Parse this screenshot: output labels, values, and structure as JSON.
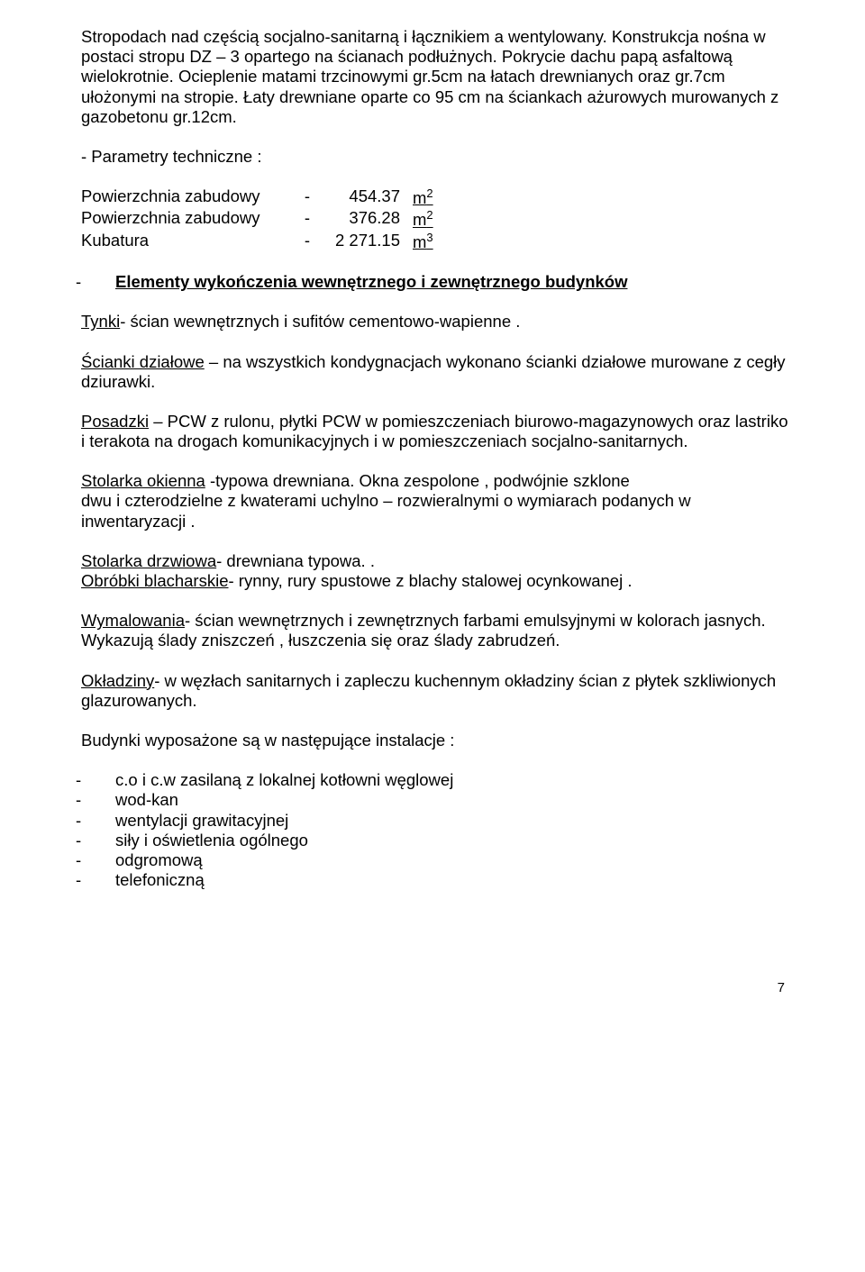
{
  "p1": "Stropodach nad częścią socjalno-sanitarną i łącznikiem a wentylowany.  Konstrukcja nośna w postaci stropu DZ – 3 opartego na ścianach podłużnych. Pokrycie dachu papą asfaltową wielokrotnie. Ocieplenie matami trzcinowymi gr.5cm na łatach drewnianych oraz gr.7cm ułożonymi na stropie. Łaty drewniane oparte co 95 cm na ściankach ażurowych murowanych z gazobetonu gr.12cm.",
  "param_heading": "- Parametry techniczne :",
  "params": {
    "r0": {
      "name": "Powierzchnia zabudowy",
      "dash": "-",
      "value": "454.37",
      "unit_base": "m",
      "unit_exp": "2"
    },
    "r1": {
      "name": "Powierzchnia zabudowy",
      "dash": "-",
      "value": "376.28",
      "unit_base": "m",
      "unit_exp": "2"
    },
    "r2": {
      "name": "Kubatura",
      "dash": "-",
      "value": "2 271.15",
      "unit_base": "m",
      "unit_exp": "3"
    }
  },
  "section_dash": "-",
  "section_title": "Elementy wykończenia wewnętrznego i zewnętrznego budynków",
  "tynki_u": "Tynki",
  "tynki_rest": "- ścian wewnętrznych i sufitów cementowo-wapienne .",
  "scianki_u": "Ścianki działowe",
  "scianki_rest": " – na wszystkich kondygnacjach wykonano  ścianki działowe murowane z cegły dziurawki.",
  "posadzki_u": "Posadzki",
  "posadzki_rest": " – PCW z rulonu, płytki PCW  w pomieszczeniach biurowo-magazynowych oraz lastriko i terakota  na drogach komunikacyjnych i w pomieszczeniach socjalno-sanitarnych.",
  "okienna_u": "Stolarka okienna",
  "okienna_rest1": " -typowa drewniana. Okna zespolone , podwójnie szklone",
  "okienna_rest2": "dwu i czterodzielne z kwaterami uchylno – rozwieralnymi o wymiarach podanych w inwentaryzacji .",
  "drzwiowa_u": "Stolarka drzwiowa",
  "drzwiowa_rest": "-  drewniana typowa. .",
  "obrobki_u": "Obróbki blacharskie",
  "obrobki_rest": "- rynny, rury spustowe z blachy stalowej ocynkowanej .",
  "wymal_u": "Wymalowania",
  "wymal_rest": "- ścian wewnętrznych i zewnętrznych farbami  emulsyjnymi w kolorach jasnych. Wykazują ślady zniszczeń , łuszczenia się oraz ślady zabrudzeń.",
  "oklad_u": "Okładziny",
  "oklad_rest": "- w węzłach sanitarnych i zapleczu kuchennym okładziny ścian z płytek szkliwionych glazurowanych.",
  "budynki_line": "Budynki wyposażone są w następujące instalacje :",
  "inst": {
    "i0": "c.o i c.w  zasilaną z lokalnej kotłowni węglowej",
    "i1": "wod-kan",
    "i2": "wentylacji grawitacyjnej",
    "i3": "siły i oświetlenia ogólnego",
    "i4": "odgromową",
    "i5": "telefoniczną"
  },
  "dash": "-",
  "page_number": "7"
}
